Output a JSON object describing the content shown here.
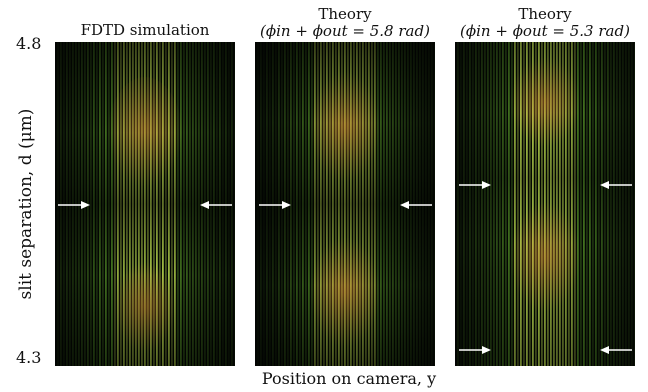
{
  "figure": {
    "panels": [
      {
        "id": "fdtd",
        "title_line1": "FDTD simulation",
        "title_line2": ""
      },
      {
        "id": "theory58",
        "title_line1": "Theory",
        "title_line2": "(ϕin + ϕout = 5.8 rad)"
      },
      {
        "id": "theory53",
        "title_line1": "Theory",
        "title_line2": "(ϕin + ϕout = 5.3 rad)"
      }
    ],
    "y_axis": {
      "label": "slit separation, d (μm)",
      "tick_top": "4.8",
      "tick_bottom": "4.3"
    },
    "x_axis": {
      "label": "Position on camera, y"
    }
  },
  "colors": {
    "background": "#040704",
    "fringe_green": "#5a9a2a",
    "fringe_bright": "#b9d94f",
    "fringe_orange": "#c9802f",
    "arrow": "#ffffff"
  }
}
